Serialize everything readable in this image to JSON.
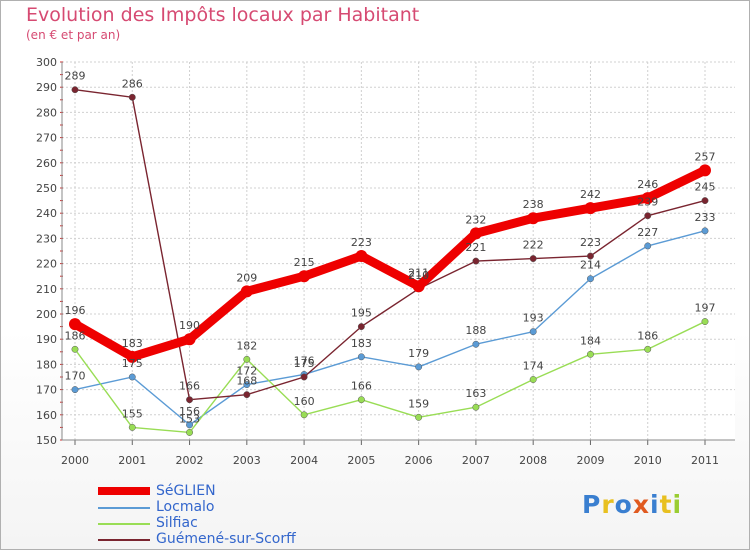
{
  "chart_data": {
    "type": "line",
    "title": "Evolution des Impôts locaux par Habitant",
    "subtitle": "(en € et par an)",
    "categories": [
      "2000",
      "2001",
      "2002",
      "2003",
      "2004",
      "2005",
      "2006",
      "2007",
      "2008",
      "2009",
      "2010",
      "2011"
    ],
    "ylim": [
      150,
      300
    ],
    "yticks": [
      150,
      160,
      170,
      180,
      190,
      200,
      210,
      220,
      230,
      240,
      250,
      260,
      270,
      280,
      290,
      300
    ],
    "series": [
      {
        "name": "SéGLIEN",
        "color": "#ee0000",
        "values": [
          196,
          183,
          190,
          209,
          215,
          223,
          211,
          232,
          238,
          242,
          246,
          257
        ]
      },
      {
        "name": "Locmalo",
        "color": "#5b9bd5",
        "values": [
          170,
          175,
          156,
          172,
          176,
          183,
          179,
          188,
          193,
          214,
          227,
          233
        ]
      },
      {
        "name": "Silfiac",
        "color": "#99dd55",
        "values": [
          186,
          155,
          153,
          182,
          160,
          166,
          159,
          163,
          174,
          184,
          186,
          197
        ]
      },
      {
        "name": "Guémené-sur-Scorff",
        "color": "#7a2530",
        "values": [
          289,
          286,
          166,
          168,
          175,
          195,
          210,
          221,
          222,
          223,
          239,
          245
        ]
      }
    ]
  },
  "logo": {
    "text": "Proxiti"
  }
}
